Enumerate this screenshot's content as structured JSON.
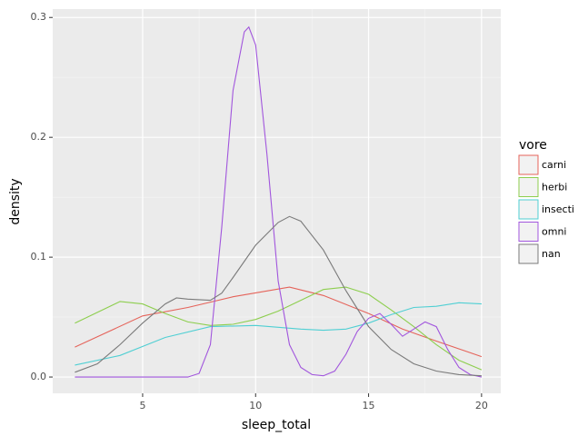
{
  "chart_data": {
    "type": "line",
    "x_label": "sleep_total",
    "y_label": "density",
    "xlim": [
      1.02,
      20.85
    ],
    "ylim": [
      -0.0136,
      0.307
    ],
    "xticks": [
      5,
      10,
      15,
      20
    ],
    "yticks": [
      {
        "value": 0,
        "label": "0.0"
      },
      0.1,
      0.2,
      0.3
    ],
    "grid": true,
    "legend_title": "vore",
    "legend_position": "right",
    "series": [
      {
        "name": "carni",
        "color": "#e5635a",
        "x": [
          2,
          5,
          7,
          9,
          11.5,
          13,
          15,
          16.5,
          18,
          20
        ],
        "values": [
          0.025,
          0.051,
          0.058,
          0.067,
          0.075,
          0.068,
          0.053,
          0.04,
          0.03,
          0.017
        ]
      },
      {
        "name": "herbi",
        "color": "#8dce4e",
        "x": [
          2,
          4,
          5,
          6,
          7,
          8,
          9,
          10,
          11,
          12,
          13,
          14,
          15,
          16,
          17,
          18,
          19,
          20
        ],
        "values": [
          0.045,
          0.063,
          0.061,
          0.053,
          0.046,
          0.043,
          0.044,
          0.048,
          0.055,
          0.064,
          0.073,
          0.075,
          0.069,
          0.056,
          0.042,
          0.027,
          0.014,
          0.006
        ]
      },
      {
        "name": "insecti",
        "color": "#4fcfd3",
        "x": [
          2,
          4,
          6,
          8,
          10,
          12,
          13,
          14,
          15,
          16,
          17,
          18,
          19,
          20
        ],
        "values": [
          0.01,
          0.018,
          0.033,
          0.042,
          0.043,
          0.04,
          0.039,
          0.04,
          0.045,
          0.052,
          0.058,
          0.059,
          0.062,
          0.061
        ]
      },
      {
        "name": "omni",
        "color": "#a155dd",
        "x": [
          2,
          7,
          7.5,
          8,
          8.5,
          9,
          9.5,
          9.7,
          10,
          10.5,
          11,
          11.5,
          12,
          12.5,
          13,
          13.5,
          14,
          14.5,
          15,
          15.5,
          16,
          16.5,
          17,
          17.5,
          18,
          18.5,
          19,
          19.5,
          20
        ],
        "values": [
          0,
          0,
          0.003,
          0.027,
          0.125,
          0.239,
          0.288,
          0.292,
          0.277,
          0.186,
          0.08,
          0.027,
          0.008,
          0.002,
          0.001,
          0.005,
          0.019,
          0.038,
          0.049,
          0.053,
          0.044,
          0.034,
          0.04,
          0.046,
          0.042,
          0.023,
          0.008,
          0.002,
          0
        ]
      },
      {
        "name": "nan",
        "color": "#7a7a7a",
        "x": [
          2,
          3,
          4,
          5,
          6,
          6.5,
          7,
          8,
          8.5,
          9,
          10,
          11,
          11.5,
          12,
          13,
          14,
          15,
          16,
          17,
          18,
          19,
          20
        ],
        "values": [
          0.004,
          0.011,
          0.027,
          0.045,
          0.061,
          0.066,
          0.065,
          0.064,
          0.07,
          0.083,
          0.11,
          0.129,
          0.134,
          0.13,
          0.106,
          0.072,
          0.042,
          0.023,
          0.011,
          0.005,
          0.002,
          0.001
        ]
      }
    ]
  }
}
